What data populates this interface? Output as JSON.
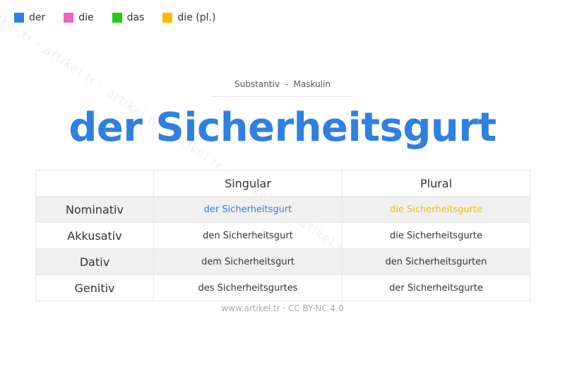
{
  "legend": [
    {
      "label": "der",
      "color": "#2f80e0"
    },
    {
      "label": "die",
      "color": "#ee66bb"
    },
    {
      "label": "das",
      "color": "#22cc11"
    },
    {
      "label": "die (pl.)",
      "color": "#ffbb00"
    }
  ],
  "watermark": "artikel.tr - artikel.tr - artikel.tr - artikel.tr - artikel.tr - artikel.tr",
  "subtitle": "Substantiv  -  Maskulin",
  "title": "der Sicherheitsgurt",
  "table": {
    "headers": [
      "",
      "Singular",
      "Plural"
    ],
    "rows": [
      {
        "case": "Nominativ",
        "singular": "der Sicherheitsgurt",
        "plural": "die Sicherheitsgurte"
      },
      {
        "case": "Akkusativ",
        "singular": "den Sicherheitsgurt",
        "plural": "die Sicherheitsgurte"
      },
      {
        "case": "Dativ",
        "singular": "dem Sicherheitsgurt",
        "plural": "den Sicherheitsgurten"
      },
      {
        "case": "Genitiv",
        "singular": "des Sicherheitsgurtes",
        "plural": "der Sicherheitsgurte"
      }
    ]
  },
  "footer": "www.artikel.tr · CC BY-NC 4.0"
}
